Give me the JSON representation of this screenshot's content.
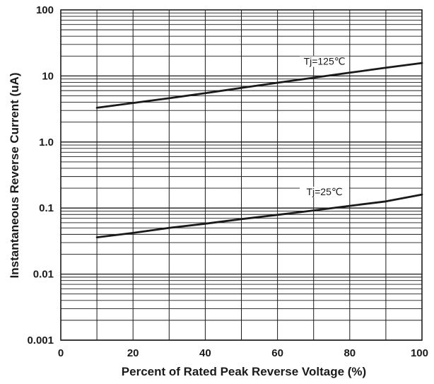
{
  "chart_data": {
    "type": "line",
    "title": "",
    "xlabel": "Percent of Rated Peak Reverse Voltage (%)",
    "ylabel": "Instantaneous Reverse Current (uA)",
    "x_scale": "linear",
    "y_scale": "log",
    "xlim": [
      0,
      100
    ],
    "ylim": [
      0.001,
      100
    ],
    "x_ticks": [
      0,
      20,
      40,
      60,
      80,
      100
    ],
    "x_tick_labels": [
      "0",
      "20",
      "40",
      "60",
      "80",
      "100"
    ],
    "x_grid_step": 10,
    "y_ticks": [
      100,
      10,
      1,
      0.1,
      0.01,
      0.001
    ],
    "y_tick_labels": [
      "100",
      "10",
      "1.0",
      "0.1",
      "0.01",
      "0.001"
    ],
    "grid": true,
    "series": [
      {
        "name": "Tj=125℃",
        "x": [
          10,
          20,
          30,
          40,
          50,
          60,
          70,
          80,
          90,
          100
        ],
        "y": [
          3.3,
          3.9,
          4.6,
          5.5,
          6.6,
          7.9,
          9.4,
          11.2,
          13.3,
          15.7
        ]
      },
      {
        "name": "Tj=25℃",
        "x": [
          10,
          20,
          30,
          40,
          50,
          60,
          70,
          80,
          90,
          100
        ],
        "y": [
          0.036,
          0.042,
          0.05,
          0.058,
          0.068,
          0.079,
          0.092,
          0.108,
          0.126,
          0.16
        ]
      }
    ],
    "annotations": [
      {
        "text": "Tj=125℃",
        "x": 73,
        "y": 14.8
      },
      {
        "text": "Tj=25℃",
        "x": 73,
        "y": 0.156
      }
    ]
  }
}
